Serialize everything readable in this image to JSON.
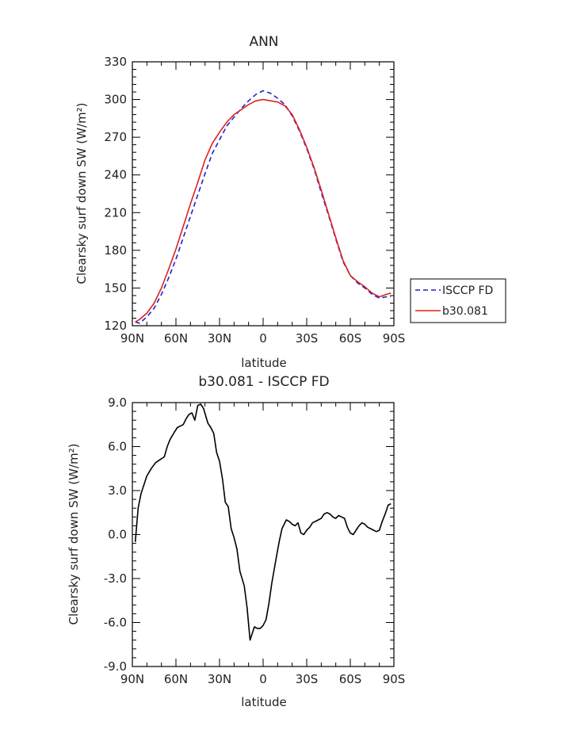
{
  "chart_data": [
    {
      "type": "line",
      "title": "ANN",
      "xlabel": "latitude",
      "ylabel": "Clearsky surf down SW (W/m²)",
      "xlim": [
        -90,
        90
      ],
      "ylim": [
        120,
        330
      ],
      "x_ticks": [
        -90,
        -60,
        -30,
        0,
        30,
        60,
        90
      ],
      "x_tick_labels": [
        "90N",
        "60N",
        "30N",
        "0",
        "30S",
        "60S",
        "90S"
      ],
      "y_ticks": [
        120,
        150,
        180,
        210,
        240,
        270,
        300,
        330
      ],
      "y_tick_labels": [
        "120",
        "150",
        "180",
        "210",
        "240",
        "270",
        "300",
        "330"
      ],
      "legend_position": "right",
      "series": [
        {
          "name": "ISCCP FD",
          "color": "#2222cc",
          "dash": "dashed",
          "x": [
            -88,
            -85,
            -80,
            -75,
            -70,
            -65,
            -60,
            -55,
            -50,
            -45,
            -40,
            -35,
            -30,
            -25,
            -20,
            -15,
            -10,
            -5,
            0,
            5,
            10,
            15,
            20,
            25,
            30,
            35,
            40,
            45,
            50,
            55,
            60,
            65,
            70,
            75,
            80,
            85,
            88
          ],
          "values": [
            123,
            122,
            127,
            134,
            145,
            158,
            173,
            190,
            207,
            224,
            241,
            257,
            268,
            279,
            286,
            293,
            299,
            304,
            307,
            305,
            301,
            296,
            287,
            275,
            261,
            245,
            226,
            208,
            189,
            171,
            160,
            154,
            150,
            145,
            142,
            143,
            143
          ]
        },
        {
          "name": "b30.081",
          "color": "#dd2222",
          "dash": "solid",
          "x": [
            -88,
            -85,
            -80,
            -75,
            -70,
            -65,
            -60,
            -55,
            -50,
            -45,
            -40,
            -35,
            -30,
            -25,
            -20,
            -15,
            -10,
            -5,
            0,
            5,
            10,
            15,
            20,
            25,
            30,
            35,
            40,
            45,
            50,
            55,
            60,
            65,
            70,
            75,
            80,
            85,
            88
          ],
          "values": [
            123,
            125,
            130,
            138,
            150,
            165,
            181,
            199,
            217,
            234,
            252,
            265,
            274,
            282,
            288,
            292,
            296,
            299,
            300,
            299,
            298,
            295,
            288,
            276,
            262,
            246,
            228,
            209,
            190,
            172,
            160,
            155,
            151,
            146,
            143,
            145,
            146
          ]
        }
      ]
    },
    {
      "type": "line",
      "title": "b30.081 - ISCCP FD",
      "xlabel": "latitude",
      "ylabel": "Clearsky surf down SW (W/m²)",
      "xlim": [
        -90,
        90
      ],
      "ylim": [
        -9,
        9
      ],
      "x_ticks": [
        -90,
        -60,
        -30,
        0,
        30,
        60,
        90
      ],
      "x_tick_labels": [
        "90N",
        "60N",
        "30N",
        "0",
        "30S",
        "60S",
        "90S"
      ],
      "y_ticks": [
        -9,
        -6,
        -3,
        0,
        3,
        6,
        9
      ],
      "y_tick_labels": [
        "-9.0",
        "-6.0",
        "-3.0",
        "0.0",
        "3.0",
        "6.0",
        "9.0"
      ],
      "series": [
        {
          "color": "#000000",
          "dash": "solid",
          "x": [
            -88,
            -86,
            -84,
            -80,
            -77,
            -74,
            -71,
            -68,
            -66,
            -64,
            -61,
            -59,
            -57,
            -55,
            -53,
            -51,
            -49,
            -47,
            -45,
            -43,
            -41,
            -38,
            -36,
            -34,
            -32,
            -30,
            -28,
            -26,
            -24,
            -22,
            -20,
            -18,
            -16,
            -13,
            -11,
            -9,
            -6,
            -4,
            -2,
            0,
            2,
            4,
            6,
            9,
            11,
            13,
            16,
            18,
            20,
            22,
            24,
            26,
            28,
            30,
            32,
            34,
            36,
            38,
            40,
            42,
            44,
            46,
            48,
            50,
            52,
            54,
            56,
            58,
            60,
            62,
            64,
            66,
            68,
            70,
            72,
            74,
            76,
            78,
            80,
            82,
            84,
            86,
            88
          ],
          "values": [
            -0.5,
            1.8,
            2.8,
            4.0,
            4.5,
            4.9,
            5.1,
            5.3,
            6.0,
            6.5,
            7.0,
            7.3,
            7.4,
            7.5,
            7.9,
            8.2,
            8.3,
            7.8,
            8.8,
            8.9,
            8.6,
            7.6,
            7.3,
            6.9,
            5.6,
            5.0,
            3.8,
            2.2,
            1.9,
            0.4,
            -0.2,
            -1.0,
            -2.5,
            -3.5,
            -5.0,
            -7.2,
            -6.3,
            -6.4,
            -6.4,
            -6.2,
            -5.8,
            -4.7,
            -3.3,
            -1.6,
            -0.5,
            0.4,
            1.0,
            0.9,
            0.7,
            0.6,
            0.8,
            0.1,
            0.0,
            0.3,
            0.5,
            0.8,
            0.9,
            1.0,
            1.1,
            1.4,
            1.5,
            1.4,
            1.2,
            1.1,
            1.3,
            1.2,
            1.1,
            0.5,
            0.1,
            0.0,
            0.3,
            0.6,
            0.8,
            0.7,
            0.5,
            0.4,
            0.3,
            0.2,
            0.3,
            0.9,
            1.4,
            2.0,
            2.1
          ]
        }
      ]
    }
  ]
}
